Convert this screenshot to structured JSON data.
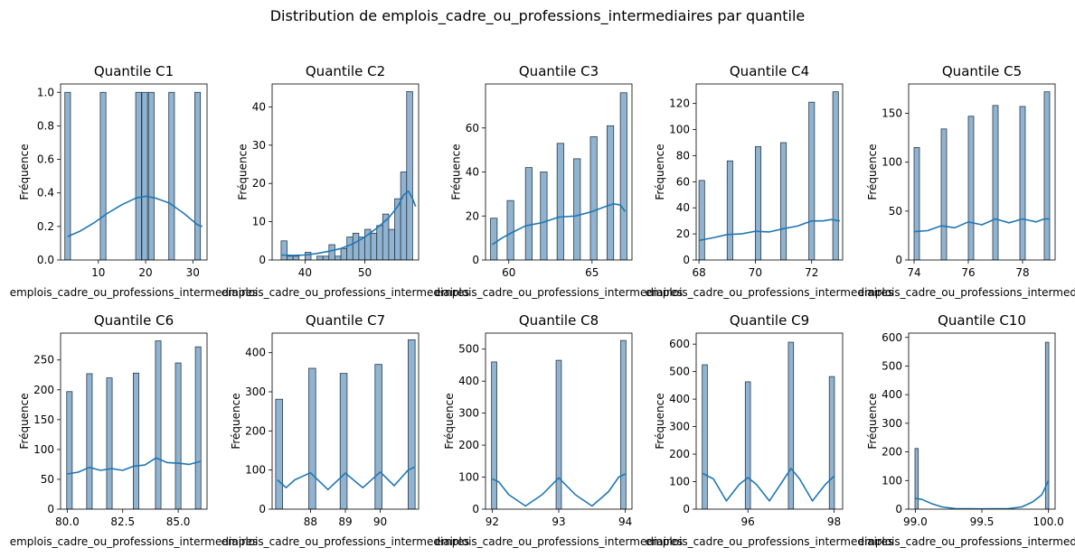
{
  "figure": {
    "title": "Distribution de emplois_cadre_ou_professions_intermediaires par quantile"
  },
  "style": {
    "bar_fill": "#8fb3d1",
    "bar_stroke": "#2b3a48",
    "kde_color": "#1f77b4"
  },
  "chart_data": [
    {
      "type": "bar",
      "title": "Quantile C1",
      "xlabel": "emplois_cadre_ou_professions_intermediaires",
      "ylabel": "Fréquence",
      "xlim": [
        2,
        33
      ],
      "ylim": [
        0,
        1.05
      ],
      "xticks": [
        10,
        20,
        30
      ],
      "xtick_labels": [
        "10",
        "20",
        "30"
      ],
      "yticks": [
        0,
        0.2,
        0.4,
        0.6,
        0.8,
        1.0
      ],
      "ytick_labels": [
        "0.0",
        "0.2",
        "0.4",
        "0.6",
        "0.8",
        "1.0"
      ],
      "bars": [
        {
          "x": 3.5,
          "value": 1
        },
        {
          "x": 11,
          "value": 1
        },
        {
          "x": 18.5,
          "value": 1
        },
        {
          "x": 19.8,
          "value": 1
        },
        {
          "x": 21.2,
          "value": 1
        },
        {
          "x": 25.5,
          "value": 1
        },
        {
          "x": 31,
          "value": 1
        }
      ],
      "bar_width": 1.2,
      "kde": [
        [
          3.5,
          0.14
        ],
        [
          6,
          0.17
        ],
        [
          9,
          0.22
        ],
        [
          12,
          0.28
        ],
        [
          15,
          0.33
        ],
        [
          18,
          0.37
        ],
        [
          20,
          0.38
        ],
        [
          22,
          0.37
        ],
        [
          25,
          0.34
        ],
        [
          28,
          0.28
        ],
        [
          31,
          0.21
        ],
        [
          32,
          0.2
        ]
      ]
    },
    {
      "type": "bar",
      "title": "Quantile C2",
      "xlabel": "emplois_cadre_ou_professions_intermediaires",
      "ylabel": "Fréquence",
      "xlim": [
        34.5,
        59
      ],
      "ylim": [
        0,
        46
      ],
      "xticks": [
        40,
        50
      ],
      "xtick_labels": [
        "40",
        "50"
      ],
      "yticks": [
        0,
        10,
        20,
        30,
        40
      ],
      "ytick_labels": [
        "0",
        "10",
        "20",
        "30",
        "40"
      ],
      "bars": [
        {
          "x": 36.5,
          "value": 5
        },
        {
          "x": 37.5,
          "value": 1
        },
        {
          "x": 38.5,
          "value": 1
        },
        {
          "x": 40.5,
          "value": 2
        },
        {
          "x": 42.5,
          "value": 1
        },
        {
          "x": 43.5,
          "value": 1
        },
        {
          "x": 44.5,
          "value": 4
        },
        {
          "x": 45.5,
          "value": 1
        },
        {
          "x": 46.5,
          "value": 3
        },
        {
          "x": 47.5,
          "value": 6
        },
        {
          "x": 48.5,
          "value": 7
        },
        {
          "x": 49.5,
          "value": 6
        },
        {
          "x": 50.5,
          "value": 8
        },
        {
          "x": 51.5,
          "value": 7
        },
        {
          "x": 52.5,
          "value": 9
        },
        {
          "x": 53.5,
          "value": 12
        },
        {
          "x": 54.5,
          "value": 8
        },
        {
          "x": 55.5,
          "value": 16
        },
        {
          "x": 56.5,
          "value": 23
        },
        {
          "x": 57.5,
          "value": 44
        }
      ],
      "bar_width": 1.0,
      "kde": [
        [
          36,
          1.3
        ],
        [
          38,
          1.2
        ],
        [
          40,
          1.3
        ],
        [
          42,
          1.7
        ],
        [
          44,
          2.3
        ],
        [
          46,
          3
        ],
        [
          48,
          4.2
        ],
        [
          50,
          6
        ],
        [
          52,
          8.3
        ],
        [
          54,
          11
        ],
        [
          55.5,
          14
        ],
        [
          56.5,
          17
        ],
        [
          57.3,
          18
        ],
        [
          58,
          16
        ],
        [
          58.5,
          14
        ]
      ]
    },
    {
      "type": "bar",
      "title": "Quantile C3",
      "xlabel": "emplois_cadre_ou_professions_intermediaires",
      "ylabel": "Fréquence",
      "xlim": [
        58.6,
        67.4
      ],
      "ylim": [
        0,
        80
      ],
      "xticks": [
        60,
        65
      ],
      "xtick_labels": [
        "60",
        "65"
      ],
      "yticks": [
        0,
        20,
        40,
        60
      ],
      "ytick_labels": [
        "0",
        "20",
        "40",
        "60"
      ],
      "bars": [
        {
          "x": 59.1,
          "value": 19
        },
        {
          "x": 60.1,
          "value": 27
        },
        {
          "x": 61.2,
          "value": 42
        },
        {
          "x": 62.1,
          "value": 40
        },
        {
          "x": 63.1,
          "value": 53
        },
        {
          "x": 64.1,
          "value": 46
        },
        {
          "x": 65.1,
          "value": 56
        },
        {
          "x": 66.1,
          "value": 61
        },
        {
          "x": 66.9,
          "value": 76
        }
      ],
      "bar_width": 0.4,
      "kde": [
        [
          59,
          7
        ],
        [
          59.6,
          10
        ],
        [
          60.2,
          12.5
        ],
        [
          61,
          15.5
        ],
        [
          62,
          17
        ],
        [
          63,
          19.5
        ],
        [
          64,
          20
        ],
        [
          65,
          22
        ],
        [
          65.7,
          24
        ],
        [
          66.3,
          25.5
        ],
        [
          66.7,
          25
        ],
        [
          67,
          22
        ]
      ]
    },
    {
      "type": "bar",
      "title": "Quantile C4",
      "xlabel": "emplois_cadre_ou_professions_intermediaires",
      "ylabel": "Fréquence",
      "xlim": [
        67.9,
        73.1
      ],
      "ylim": [
        0,
        135
      ],
      "xticks": [
        68,
        70,
        72
      ],
      "xtick_labels": [
        "68",
        "70",
        "72"
      ],
      "yticks": [
        0,
        20,
        40,
        60,
        80,
        100,
        120
      ],
      "ytick_labels": [
        "0",
        "20",
        "40",
        "60",
        "80",
        "100",
        "120"
      ],
      "bars": [
        {
          "x": 68.1,
          "value": 61
        },
        {
          "x": 69.1,
          "value": 76
        },
        {
          "x": 70.1,
          "value": 87
        },
        {
          "x": 71.0,
          "value": 90
        },
        {
          "x": 72.0,
          "value": 121
        },
        {
          "x": 72.85,
          "value": 129
        }
      ],
      "bar_width": 0.2,
      "kde": [
        [
          68,
          15
        ],
        [
          68.5,
          17
        ],
        [
          69,
          19.5
        ],
        [
          69.5,
          20
        ],
        [
          70,
          22
        ],
        [
          70.5,
          21.5
        ],
        [
          71,
          24
        ],
        [
          71.5,
          26
        ],
        [
          72,
          30
        ],
        [
          72.4,
          30
        ],
        [
          72.7,
          31
        ],
        [
          73,
          30
        ]
      ]
    },
    {
      "type": "bar",
      "title": "Quantile C5",
      "xlabel": "emplois_cadre_ou_professions_intermediaires",
      "ylabel": "Fréquence",
      "xlim": [
        73.8,
        79.2
      ],
      "ylim": [
        0,
        180
      ],
      "xticks": [
        74,
        76,
        78
      ],
      "xtick_labels": [
        "74",
        "76",
        "78"
      ],
      "yticks": [
        0,
        50,
        100,
        150
      ],
      "ytick_labels": [
        "0",
        "50",
        "100",
        "150"
      ],
      "bars": [
        {
          "x": 74.1,
          "value": 115
        },
        {
          "x": 75.1,
          "value": 134
        },
        {
          "x": 76.1,
          "value": 147
        },
        {
          "x": 77.0,
          "value": 158
        },
        {
          "x": 78.0,
          "value": 157
        },
        {
          "x": 78.9,
          "value": 172
        }
      ],
      "bar_width": 0.2,
      "kde": [
        [
          74,
          29
        ],
        [
          74.5,
          30
        ],
        [
          75,
          35
        ],
        [
          75.5,
          33
        ],
        [
          76,
          39
        ],
        [
          76.5,
          36
        ],
        [
          77,
          42
        ],
        [
          77.5,
          38
        ],
        [
          78,
          42
        ],
        [
          78.5,
          39
        ],
        [
          78.8,
          42
        ],
        [
          79,
          42
        ]
      ]
    },
    {
      "type": "bar",
      "title": "Quantile C6",
      "xlabel": "emplois_cadre_ou_professions_intermediaires",
      "ylabel": "Fréquence",
      "xlim": [
        79.7,
        86.3
      ],
      "ylim": [
        0,
        295
      ],
      "xticks": [
        80,
        82.5,
        85
      ],
      "xtick_labels": [
        "80.0",
        "82.5",
        "85.0"
      ],
      "yticks": [
        0,
        50,
        100,
        150,
        200,
        250
      ],
      "ytick_labels": [
        "0",
        "50",
        "100",
        "150",
        "200",
        "250"
      ],
      "bars": [
        {
          "x": 80.1,
          "value": 197
        },
        {
          "x": 81.0,
          "value": 227
        },
        {
          "x": 81.9,
          "value": 220
        },
        {
          "x": 83.1,
          "value": 228
        },
        {
          "x": 84.1,
          "value": 282
        },
        {
          "x": 85.0,
          "value": 245
        },
        {
          "x": 85.9,
          "value": 272
        }
      ],
      "bar_width": 0.25,
      "kde": [
        [
          80,
          59
        ],
        [
          80.5,
          62
        ],
        [
          81,
          70
        ],
        [
          81.5,
          65
        ],
        [
          82,
          68
        ],
        [
          82.5,
          65
        ],
        [
          83,
          72
        ],
        [
          83.5,
          74
        ],
        [
          84,
          86
        ],
        [
          84.5,
          78
        ],
        [
          85,
          77
        ],
        [
          85.5,
          75
        ],
        [
          86,
          80
        ]
      ]
    },
    {
      "type": "bar",
      "title": "Quantile C7",
      "xlabel": "emplois_cadre_ou_professions_intermediaires",
      "ylabel": "Fréquence",
      "xlim": [
        86.9,
        91.1
      ],
      "ylim": [
        0,
        450
      ],
      "xticks": [
        88,
        89,
        90
      ],
      "xtick_labels": [
        "88",
        "89",
        "90"
      ],
      "yticks": [
        0,
        100,
        200,
        300,
        400
      ],
      "ytick_labels": [
        "0",
        "100",
        "200",
        "300",
        "400"
      ],
      "bars": [
        {
          "x": 87.1,
          "value": 281
        },
        {
          "x": 88.05,
          "value": 360
        },
        {
          "x": 88.95,
          "value": 347
        },
        {
          "x": 89.95,
          "value": 370
        },
        {
          "x": 90.9,
          "value": 433
        }
      ],
      "bar_width": 0.2,
      "kde": [
        [
          87.05,
          75
        ],
        [
          87.3,
          55
        ],
        [
          87.55,
          75
        ],
        [
          88,
          93
        ],
        [
          88.5,
          50
        ],
        [
          89,
          92
        ],
        [
          89.5,
          55
        ],
        [
          90,
          95
        ],
        [
          90.4,
          60
        ],
        [
          90.8,
          100
        ],
        [
          91,
          108
        ]
      ]
    },
    {
      "type": "bar",
      "title": "Quantile C8",
      "xlabel": "emplois_cadre_ou_professions_intermediaires",
      "ylabel": "Fréquence",
      "xlim": [
        91.9,
        94.1
      ],
      "ylim": [
        0,
        550
      ],
      "xticks": [
        92,
        93,
        94
      ],
      "xtick_labels": [
        "92",
        "93",
        "94"
      ],
      "yticks": [
        0,
        100,
        200,
        300,
        400,
        500
      ],
      "ytick_labels": [
        "0",
        "100",
        "200",
        "300",
        "400",
        "500"
      ],
      "bars": [
        {
          "x": 92.03,
          "value": 460
        },
        {
          "x": 93.0,
          "value": 465
        },
        {
          "x": 93.97,
          "value": 527
        }
      ],
      "bar_width": 0.08,
      "kde": [
        [
          92,
          95
        ],
        [
          92.1,
          85
        ],
        [
          92.25,
          45
        ],
        [
          92.5,
          10
        ],
        [
          92.75,
          45
        ],
        [
          93,
          98
        ],
        [
          93.25,
          45
        ],
        [
          93.5,
          10
        ],
        [
          93.75,
          55
        ],
        [
          93.9,
          100
        ],
        [
          94,
          110
        ]
      ]
    },
    {
      "type": "bar",
      "title": "Quantile C9",
      "xlabel": "emplois_cadre_ou_professions_intermediaires",
      "ylabel": "Fréquence",
      "xlim": [
        94.8,
        98.2
      ],
      "ylim": [
        0,
        640
      ],
      "xticks": [
        96,
        98
      ],
      "xtick_labels": [
        "96",
        "98"
      ],
      "yticks": [
        0,
        100,
        200,
        300,
        400,
        500,
        600
      ],
      "ytick_labels": [
        "0",
        "100",
        "200",
        "300",
        "400",
        "500",
        "600"
      ],
      "bars": [
        {
          "x": 95.0,
          "value": 525
        },
        {
          "x": 96.0,
          "value": 463
        },
        {
          "x": 97.0,
          "value": 607
        },
        {
          "x": 97.95,
          "value": 482
        }
      ],
      "bar_width": 0.12,
      "kde": [
        [
          94.95,
          130
        ],
        [
          95.2,
          110
        ],
        [
          95.5,
          30
        ],
        [
          95.8,
          90
        ],
        [
          96,
          115
        ],
        [
          96.2,
          90
        ],
        [
          96.5,
          30
        ],
        [
          96.8,
          100
        ],
        [
          97,
          148
        ],
        [
          97.2,
          110
        ],
        [
          97.5,
          30
        ],
        [
          97.8,
          90
        ],
        [
          98,
          120
        ]
      ]
    },
    {
      "type": "bar",
      "title": "Quantile C10",
      "xlabel": "emplois_cadre_ou_professions_intermediaires",
      "ylabel": "Fréquence",
      "xlim": [
        98.95,
        100.05
      ],
      "ylim": [
        0,
        615
      ],
      "xticks": [
        99.0,
        99.5,
        100.0
      ],
      "xtick_labels": [
        "99.0",
        "99.5",
        "100.0"
      ],
      "yticks": [
        0,
        100,
        200,
        300,
        400,
        500,
        600
      ],
      "ytick_labels": [
        "0",
        "100",
        "200",
        "300",
        "400",
        "500",
        "600"
      ],
      "bars": [
        {
          "x": 99.01,
          "value": 212
        },
        {
          "x": 99.99,
          "value": 583
        }
      ],
      "bar_width": 0.025,
      "kde": [
        [
          99,
          38
        ],
        [
          99.05,
          34
        ],
        [
          99.12,
          20
        ],
        [
          99.2,
          8
        ],
        [
          99.3,
          2
        ],
        [
          99.5,
          1
        ],
        [
          99.7,
          2
        ],
        [
          99.8,
          8
        ],
        [
          99.88,
          25
        ],
        [
          99.95,
          50
        ],
        [
          100,
          100
        ]
      ]
    }
  ]
}
